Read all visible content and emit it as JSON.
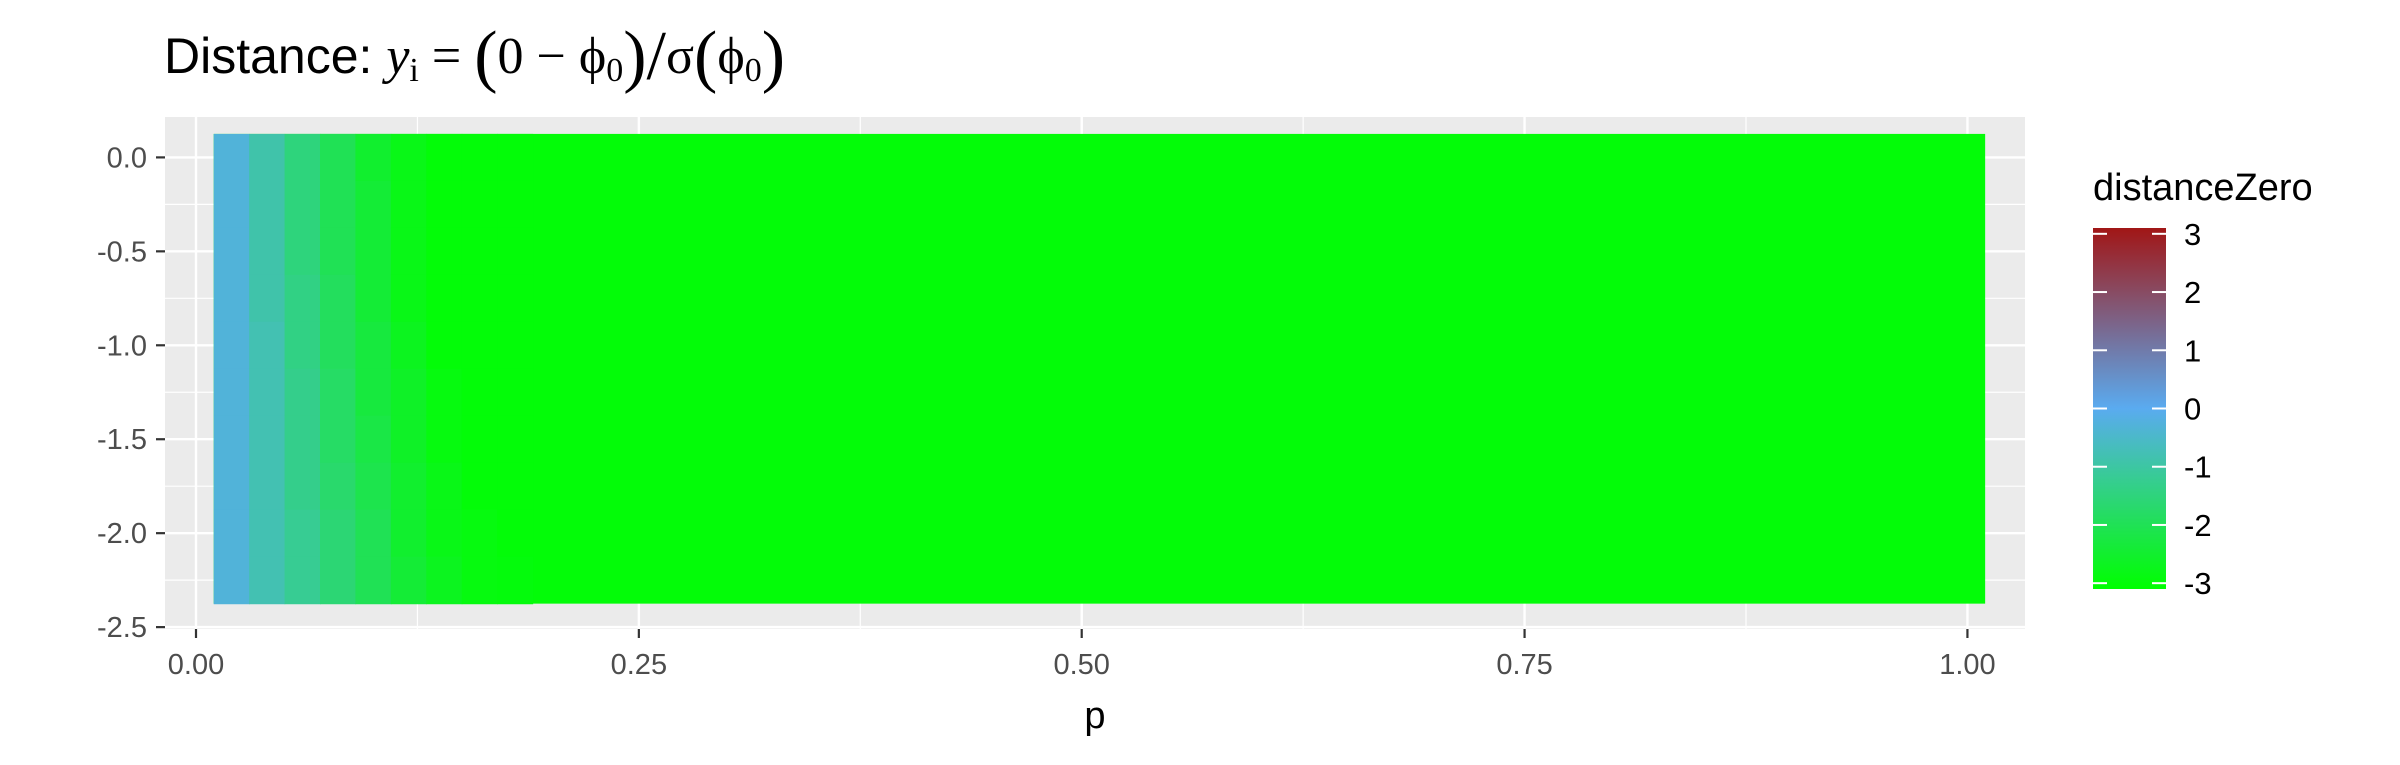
{
  "chart_data": {
    "type": "heatmap",
    "title": {
      "prefix": "Distance: ",
      "y": "y",
      "i": "i",
      "eq": " = ",
      "open": "(",
      "zero_minus": "0 − ",
      "phi": "ϕ",
      "sub0": "0",
      "close": ")",
      "slash": "/",
      "sigma": "σ"
    },
    "xlabel": "p",
    "ylabel": "",
    "xlim": [
      -0.0175,
      1.0325
    ],
    "ylim": [
      -2.51,
      0.215
    ],
    "x_ticks": [
      0.0,
      0.25,
      0.5,
      0.75,
      1.0
    ],
    "x_tick_labels": [
      "0.00",
      "0.25",
      "0.50",
      "0.75",
      "1.00"
    ],
    "y_ticks": [
      0.0,
      -0.5,
      -1.0,
      -1.5,
      -2.0,
      -2.5
    ],
    "y_tick_labels": [
      "0.0",
      "-0.5",
      "-1.0",
      "-1.5",
      "-2.0",
      "-2.5"
    ],
    "x": [
      0.02,
      0.04,
      0.06,
      0.08,
      0.1,
      0.12,
      0.14,
      0.16,
      0.18
    ],
    "y": [
      0.0,
      -0.25,
      -0.5,
      -0.75,
      -1.0,
      -1.25,
      -1.5,
      -1.75,
      -2.0,
      -2.25
    ],
    "tile_width": 0.02,
    "tile_height": 0.25,
    "x_extent": [
      0.01,
      1.01
    ],
    "y_extent": [
      -2.375,
      0.125
    ],
    "background_value": -3,
    "values": [
      [
        -0.3,
        -0.3,
        -0.3,
        -0.3,
        -0.3,
        -0.3,
        -0.3,
        -0.3,
        -0.3,
        -0.3
      ],
      [
        -0.9,
        -0.9,
        -0.9,
        -0.9,
        -0.8,
        -0.8,
        -0.8,
        -0.8,
        -0.8,
        -0.8
      ],
      [
        -1.5,
        -1.5,
        -1.5,
        -1.4,
        -1.4,
        -1.3,
        -1.3,
        -1.3,
        -1.2,
        -1.2
      ],
      [
        -2.0,
        -2.0,
        -2.0,
        -1.9,
        -1.9,
        -1.8,
        -1.8,
        -1.7,
        -1.6,
        -1.6
      ],
      [
        -2.5,
        -2.4,
        -2.4,
        -2.4,
        -2.3,
        -2.3,
        -2.2,
        -2.1,
        -2.0,
        -2.0
      ],
      [
        -2.8,
        -2.8,
        -2.8,
        -2.8,
        -2.7,
        -2.6,
        -2.6,
        -2.5,
        -2.5,
        -2.4
      ],
      [
        -3.0,
        -3.0,
        -3.0,
        -3.0,
        -3.0,
        -2.9,
        -2.9,
        -2.8,
        -2.8,
        -2.7
      ],
      [
        -3.0,
        -3.0,
        -3.0,
        -3.0,
        -3.0,
        -3.0,
        -3.0,
        -3.0,
        -2.9,
        -2.9
      ],
      [
        -3.0,
        -3.0,
        -3.0,
        -3.0,
        -3.0,
        -3.0,
        -3.0,
        -3.0,
        -3.0,
        -2.95
      ]
    ],
    "legend": {
      "title": "distanceZero",
      "position": "right",
      "breaks": [
        3,
        2,
        1,
        0,
        -1,
        -2,
        -3
      ],
      "labels": [
        "3",
        "2",
        "1",
        "0",
        "-1",
        "-2",
        "-3"
      ],
      "limits": [
        -3.1,
        3.1
      ]
    },
    "colors": {
      "high": "#a11616",
      "mid": "#5aabf0",
      "low": "#00ff00",
      "panel_background": "#ebebeb",
      "grid_major": "#ffffff",
      "tick_text": "#4d4d4d"
    },
    "grid": true
  }
}
